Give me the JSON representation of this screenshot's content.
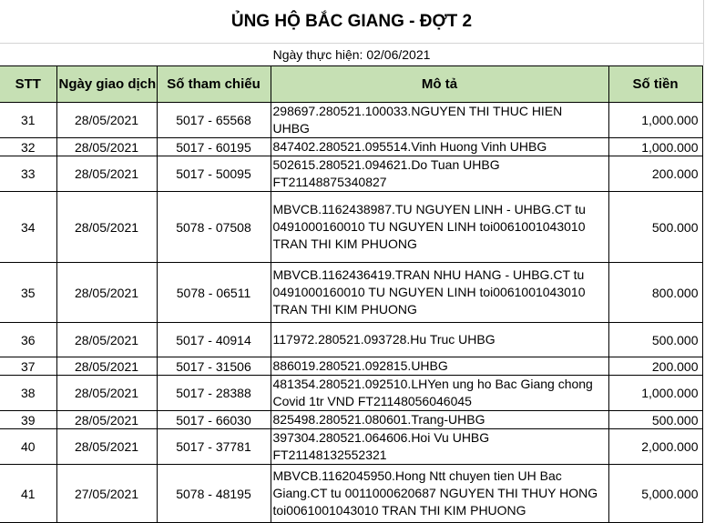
{
  "title": "ỦNG HỘ BẮC GIANG - ĐỢT 2",
  "subtitle": "Ngày thực hiện: 02/06/2021",
  "colors": {
    "header_bg": "#c6e0b4",
    "grid": "#000000"
  },
  "columns": [
    "STT",
    "Ngày giao dịch",
    "Số tham chiếu",
    "Mô tả",
    "Số tiền"
  ],
  "rows": [
    {
      "stt": "31",
      "date": "28/05/2021",
      "ref": "5017 - 65568",
      "desc": "298697.280521.100033.NGUYEN THI THUC HIEN\nUHBG",
      "amount": "1,000.000"
    },
    {
      "stt": "32",
      "date": "28/05/2021",
      "ref": "5017 - 60195",
      "desc": "847402.280521.095514.Vinh Huong Vinh UHBG",
      "amount": "1,000.000"
    },
    {
      "stt": "33",
      "date": "28/05/2021",
      "ref": "5017 - 50095",
      "desc": "502615.280521.094621.Do Tuan UHBG\nFT21148875340827",
      "amount": "200.000"
    },
    {
      "stt": "34",
      "date": "28/05/2021",
      "ref": "5078 - 07508",
      "desc": "MBVCB.1162438987.TU NGUYEN LINH - UHBG.CT tu\n0491000160010 TU NGUYEN LINH toi0061001043010\nTRAN THI KIM PHUONG",
      "amount": "500.000"
    },
    {
      "stt": "35",
      "date": "28/05/2021",
      "ref": "5078 - 06511",
      "desc": "MBVCB.1162436419.TRAN NHU HANG - UHBG.CT tu\n0491000160010 TU NGUYEN LINH toi0061001043010\nTRAN THI KIM PHUONG",
      "amount": "800.000"
    },
    {
      "stt": "36",
      "date": "28/05/2021",
      "ref": "5017 - 40914",
      "desc": "117972.280521.093728.Hu Truc   UHBG",
      "amount": "500.000"
    },
    {
      "stt": "37",
      "date": "28/05/2021",
      "ref": "5017 - 31506",
      "desc": "886019.280521.092815.UHBG",
      "amount": "200.000"
    },
    {
      "stt": "38",
      "date": "28/05/2021",
      "ref": "5017 - 28388",
      "desc": "481354.280521.092510.LHYen ung ho Bac Giang chong\nCovid 1tr VND FT21148056046045",
      "amount": "1,000.000"
    },
    {
      "stt": "39",
      "date": "28/05/2021",
      "ref": "5017 - 66030",
      "desc": "825498.280521.080601.Trang-UHBG",
      "amount": "500.000"
    },
    {
      "stt": "40",
      "date": "28/05/2021",
      "ref": "5017 - 37781",
      "desc": "397304.280521.064606.Hoi Vu UHBG\nFT21148132552321",
      "amount": "2,000.000"
    },
    {
      "stt": "41",
      "date": "27/05/2021",
      "ref": "5078 - 48195",
      "desc": "MBVCB.1162045950.Hong Ntt chuyen tien UH Bac\nGiang.CT tu 0011000620687 NGUYEN THI THUY HONG\ntoi0061001043010 TRAN THI KIM PHUONG",
      "amount": "5,000.000"
    }
  ]
}
